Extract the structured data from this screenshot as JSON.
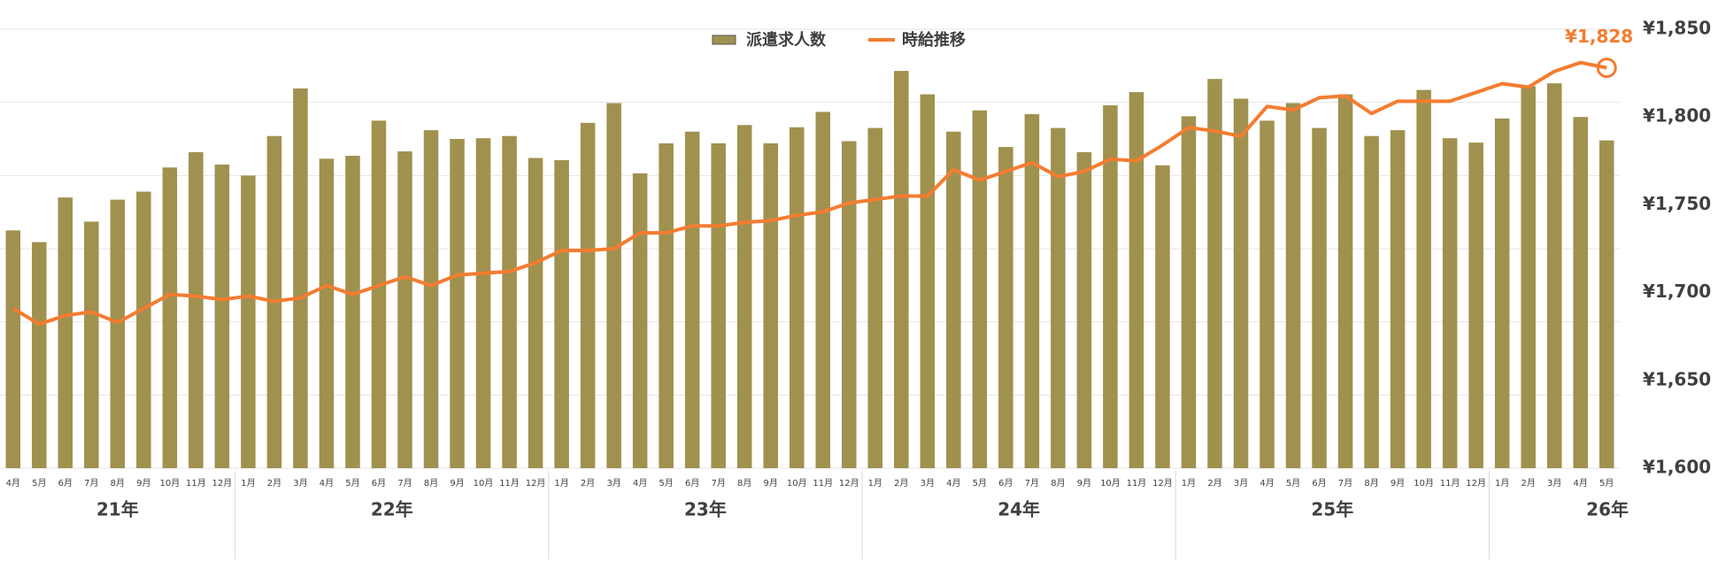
{
  "chart_data": {
    "type": "bar-line",
    "categories": [
      "4月",
      "5月",
      "6月",
      "7月",
      "8月",
      "9月",
      "10月",
      "11月",
      "12月",
      "1月",
      "2月",
      "3月",
      "4月",
      "5月",
      "6月",
      "7月",
      "8月",
      "9月",
      "10月",
      "11月",
      "12月",
      "1月",
      "2月",
      "3月",
      "4月",
      "5月",
      "6月",
      "7月",
      "8月",
      "9月",
      "10月",
      "11月",
      "12月",
      "1月",
      "2月",
      "3月",
      "4月",
      "5月",
      "6月",
      "7月",
      "8月",
      "9月",
      "10月",
      "11月",
      "12月",
      "1月",
      "2月",
      "3月",
      "4月",
      "5月",
      "6月",
      "7月",
      "8月",
      "9月",
      "10月",
      "11月",
      "12月",
      "1月",
      "2月",
      "3月",
      "4月",
      "5月"
    ],
    "groups": [
      "21年",
      "22年",
      "23年",
      "24年",
      "25年",
      "26年"
    ],
    "ylim": [
      0,
      6
    ],
    "yticks": [
      0,
      1,
      2,
      3,
      4,
      5,
      6
    ],
    "grid": true,
    "y2lim": [
      1600,
      1850
    ],
    "y2ticks": [
      {
        "value": 1600,
        "label": "¥1,600"
      },
      {
        "value": 1650,
        "label": "¥1,650"
      },
      {
        "value": 1700,
        "label": "¥1,700"
      },
      {
        "value": 1750,
        "label": "¥1,750"
      },
      {
        "value": 1800,
        "label": "¥1,800"
      },
      {
        "value": 1850,
        "label": "¥1,850"
      }
    ],
    "series": [
      {
        "name": "派遣求人数",
        "type": "bar",
        "color": "#a0914f",
        "values": [
          3.25,
          3.09,
          3.7,
          3.37,
          3.67,
          3.78,
          4.11,
          4.32,
          4.15,
          4.0,
          4.54,
          5.19,
          4.23,
          4.27,
          4.75,
          4.33,
          4.62,
          4.5,
          4.51,
          4.54,
          4.24,
          4.21,
          4.72,
          4.99,
          4.03,
          4.44,
          4.6,
          4.44,
          4.69,
          4.44,
          4.66,
          4.87,
          4.47,
          4.65,
          5.43,
          5.11,
          4.6,
          4.89,
          4.39,
          4.84,
          4.65,
          4.32,
          4.96,
          5.14,
          4.14,
          4.81,
          5.32,
          5.05,
          4.75,
          4.99,
          4.65,
          5.11,
          4.54,
          4.62,
          5.17,
          4.51,
          4.45,
          4.78,
          5.22,
          5.26,
          4.8,
          4.48
        ]
      },
      {
        "name": "時給推移",
        "type": "line",
        "axis": "y2",
        "color": "#f47c30",
        "values": [
          1691,
          1682,
          1687,
          1689,
          1683,
          1691,
          1699,
          1698,
          1696,
          1698,
          1695,
          1697,
          1704,
          1699,
          1704,
          1709,
          1704,
          1710,
          1711,
          1712,
          1717,
          1724,
          1724,
          1725,
          1734,
          1734,
          1738,
          1738,
          1740,
          1741,
          1744,
          1746,
          1751,
          1753,
          1755,
          1755,
          1770,
          1764,
          1769,
          1774,
          1766,
          1769,
          1776,
          1775,
          1784,
          1794,
          1792,
          1789,
          1806,
          1804,
          1811,
          1812,
          1802,
          1809,
          1809,
          1809,
          1814,
          1819,
          1817,
          1826,
          1831,
          1828
        ],
        "last_label": {
          "value": 1828,
          "label": "¥1,828"
        }
      }
    ]
  }
}
